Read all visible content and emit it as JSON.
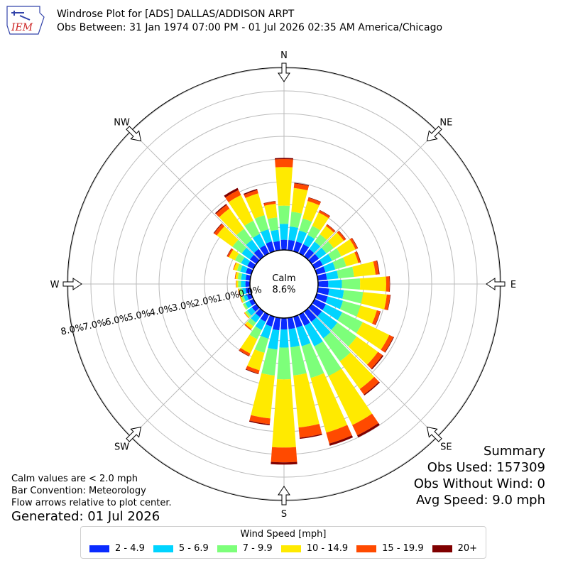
{
  "header": {
    "logo_text": "IEM",
    "title_line1": "Windrose Plot for [ADS] DALLAS/ADDISON ARPT",
    "title_line2": "Obs Between: 31 Jan 1974 07:00 PM - 01 Jul 2026 02:35 AM America/Chicago"
  },
  "summary": {
    "heading": "Summary",
    "obs_used": "Obs Used: 157309",
    "obs_without_wind": "Obs Without Wind: 0",
    "avg_speed": "Avg Speed: 9.0 mph"
  },
  "notes": {
    "calm_def": "Calm values are < 2.0 mph",
    "bar_convention": "Bar Convention: Meteorology",
    "flow_arrows": "Flow arrows relative to plot center."
  },
  "generated": "Generated: 01 Jul 2026",
  "chart_data": {
    "type": "windrose",
    "calm_label": "Calm",
    "calm_value": "8.6%",
    "rmax": 8,
    "ring_labels": [
      "0.0%",
      "1.0%",
      "2.0%",
      "3.0%",
      "4.0%",
      "5.0%",
      "6.0%",
      "7.0%",
      "8.0%"
    ],
    "directions": [
      {
        "label": "N",
        "deg": 0
      },
      {
        "label": "NE",
        "deg": 45
      },
      {
        "label": "E",
        "deg": 90
      },
      {
        "label": "SE",
        "deg": 135
      },
      {
        "label": "S",
        "deg": 180
      },
      {
        "label": "SW",
        "deg": 225
      },
      {
        "label": "W",
        "deg": 270
      },
      {
        "label": "NW",
        "deg": 315
      }
    ],
    "legend_title": "Wind Speed [mph]",
    "bins": [
      {
        "label": "2 - 4.9",
        "color": "#0a2bff"
      },
      {
        "label": "5 - 6.9",
        "color": "#00d4ff"
      },
      {
        "label": "7 - 9.9",
        "color": "#7dff7a"
      },
      {
        "label": "10 - 14.9",
        "color": "#ffea00"
      },
      {
        "label": "15 - 19.9",
        "color": "#ff4a00"
      },
      {
        "label": "20+",
        "color": "#800000"
      }
    ],
    "sector_width_deg": 10,
    "sectors": [
      {
        "deg": 0,
        "values": [
          0.45,
          0.7,
          0.8,
          1.7,
          0.35,
          0.05
        ]
      },
      {
        "deg": 10,
        "values": [
          0.45,
          0.6,
          0.65,
          1.05,
          0.2,
          0.03
        ]
      },
      {
        "deg": 20,
        "values": [
          0.45,
          0.5,
          0.55,
          0.8,
          0.15,
          0.02
        ]
      },
      {
        "deg": 30,
        "values": [
          0.45,
          0.45,
          0.45,
          0.65,
          0.1,
          0.02
        ]
      },
      {
        "deg": 40,
        "values": [
          0.4,
          0.4,
          0.4,
          0.45,
          0.08,
          0.02
        ]
      },
      {
        "deg": 50,
        "values": [
          0.4,
          0.4,
          0.4,
          0.55,
          0.1,
          0.02
        ]
      },
      {
        "deg": 60,
        "values": [
          0.4,
          0.45,
          0.45,
          0.7,
          0.1,
          0.02
        ]
      },
      {
        "deg": 70,
        "values": [
          0.4,
          0.45,
          0.5,
          0.55,
          0.1,
          0.02
        ]
      },
      {
        "deg": 80,
        "values": [
          0.4,
          0.5,
          0.7,
          0.95,
          0.15,
          0.03
        ]
      },
      {
        "deg": 90,
        "values": [
          0.45,
          0.6,
          0.8,
          1.15,
          0.15,
          0.02
        ]
      },
      {
        "deg": 100,
        "values": [
          0.5,
          0.65,
          0.85,
          1.05,
          0.15,
          0.02
        ]
      },
      {
        "deg": 110,
        "values": [
          0.5,
          0.7,
          0.8,
          0.75,
          0.15,
          0.02
        ]
      },
      {
        "deg": 120,
        "values": [
          0.55,
          0.8,
          1.0,
          1.3,
          0.2,
          0.03
        ]
      },
      {
        "deg": 130,
        "values": [
          0.55,
          0.85,
          1.05,
          1.15,
          0.25,
          0.05
        ]
      },
      {
        "deg": 140,
        "values": [
          0.55,
          0.9,
          1.25,
          1.5,
          0.3,
          0.05
        ]
      },
      {
        "deg": 150,
        "values": [
          0.55,
          1.0,
          1.45,
          2.4,
          0.5,
          0.1
        ]
      },
      {
        "deg": 160,
        "values": [
          0.5,
          0.85,
          1.45,
          2.5,
          0.5,
          0.1
        ]
      },
      {
        "deg": 170,
        "values": [
          0.5,
          0.8,
          1.25,
          2.3,
          0.45,
          0.05
        ]
      },
      {
        "deg": 180,
        "values": [
          0.5,
          0.8,
          1.4,
          3.0,
          0.65,
          0.1
        ]
      },
      {
        "deg": 190,
        "values": [
          0.55,
          0.85,
          1.15,
          1.9,
          0.25,
          0.05
        ]
      },
      {
        "deg": 200,
        "values": [
          0.45,
          0.55,
          0.65,
          0.8,
          0.15,
          0.03
        ]
      },
      {
        "deg": 210,
        "values": [
          0.35,
          0.4,
          0.45,
          0.7,
          0.12,
          0.02
        ]
      },
      {
        "deg": 220,
        "values": [
          0.3,
          0.3,
          0.2,
          0.15,
          0.05,
          0.0
        ]
      },
      {
        "deg": 230,
        "values": [
          0.25,
          0.25,
          0.1,
          0.05,
          0.02,
          0.0
        ]
      },
      {
        "deg": 240,
        "values": [
          0.2,
          0.2,
          0.1,
          0.02,
          0.0,
          0.0
        ]
      },
      {
        "deg": 250,
        "values": [
          0.2,
          0.15,
          0.1,
          0.05,
          0.02,
          0.0
        ]
      },
      {
        "deg": 260,
        "values": [
          0.2,
          0.15,
          0.12,
          0.05,
          0.02,
          0.0
        ]
      },
      {
        "deg": 270,
        "values": [
          0.2,
          0.2,
          0.12,
          0.08,
          0.02,
          0.0
        ]
      },
      {
        "deg": 280,
        "values": [
          0.2,
          0.2,
          0.15,
          0.1,
          0.03,
          0.0
        ]
      },
      {
        "deg": 290,
        "values": [
          0.25,
          0.25,
          0.15,
          0.15,
          0.03,
          0.0
        ]
      },
      {
        "deg": 300,
        "values": [
          0.3,
          0.3,
          0.3,
          0.3,
          0.08,
          0.02
        ]
      },
      {
        "deg": 310,
        "values": [
          0.35,
          0.45,
          0.5,
          0.85,
          0.15,
          0.03
        ]
      },
      {
        "deg": 320,
        "values": [
          0.4,
          0.5,
          0.6,
          1.1,
          0.2,
          0.05
        ]
      },
      {
        "deg": 330,
        "values": [
          0.4,
          0.55,
          0.65,
          1.25,
          0.25,
          0.1
        ]
      },
      {
        "deg": 340,
        "values": [
          0.45,
          0.55,
          0.65,
          1.0,
          0.15,
          0.05
        ]
      },
      {
        "deg": 350,
        "values": [
          0.4,
          0.5,
          0.55,
          0.6,
          0.1,
          0.02
        ]
      }
    ]
  }
}
